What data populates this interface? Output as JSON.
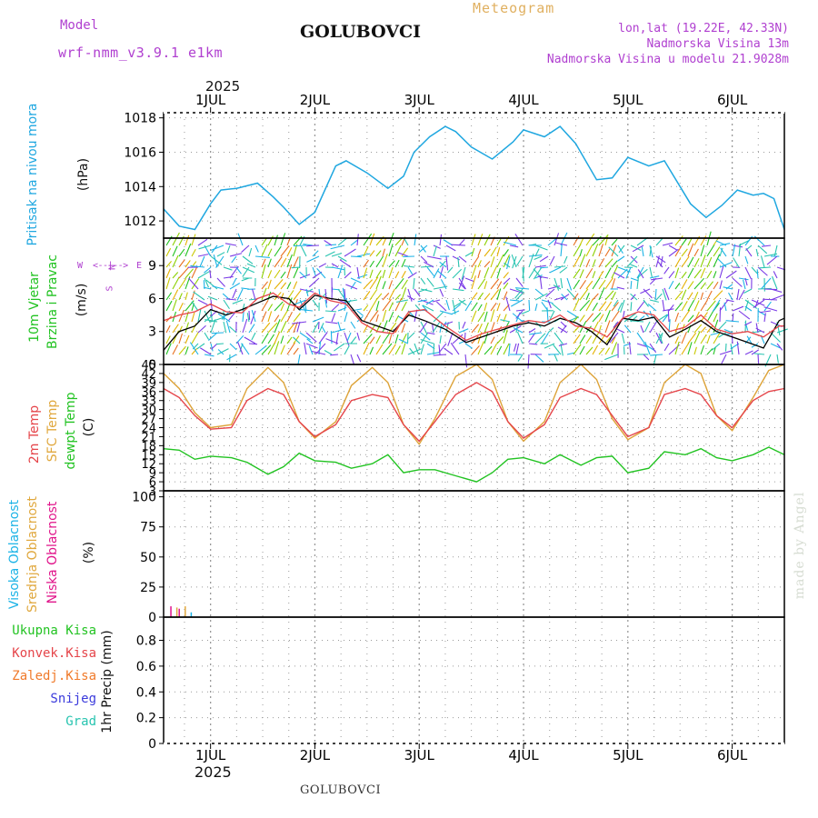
{
  "header": {
    "model_label": "Model",
    "model_name": "wrf-nmm_v3.9.1 e1km",
    "station": "GOLUBOVCI",
    "title": "Meteogram",
    "coords": "lon,lat (19.22E, 42.33N)",
    "elevation": "Nadmorska Visina 13m",
    "model_elevation": "Nadmorska Visina u modelu 21.9028m"
  },
  "footer": {
    "station": "GOLUBOVCI",
    "credit": "made by Angel"
  },
  "colors": {
    "pressure": "#1fa7e0",
    "wind_black": "#000000",
    "temp2m": "#e5454a",
    "sfc": "#dda338",
    "dew": "#22c322",
    "high_cloud": "#1cb3e6",
    "mid_cloud": "#e0a83e",
    "low_cloud": "#e0148a",
    "rain_total": "#22c322",
    "rain_conv": "#e5454a",
    "freezing": "#f07a2a",
    "snow": "#3b3bdc",
    "hail": "#28c4b0",
    "grid": "#9a9a9a"
  },
  "x_axis": {
    "year": "2025",
    "days": [
      "1JUL",
      "2JUL",
      "3JUL",
      "4JUL",
      "5JUL",
      "6JUL"
    ]
  },
  "panels": {
    "pressure": {
      "label1": "Pritisak na nivou mora",
      "unit": "(hPa)"
    },
    "wind": {
      "label1": "10m Vjetar",
      "label2": "Brzina i Pravac",
      "unit": "(m/s)",
      "compass_n": "N",
      "compass_w": "W",
      "compass_e": "E",
      "compass_s": "S",
      "compass_arrows": "<--|-->"
    },
    "temp": {
      "label1": "2m Temp",
      "label2": "SFC Temp",
      "label3": "dewpt Temp",
      "unit": "(C)"
    },
    "cloud": {
      "label1": "Visoka Oblacnost",
      "label2": "Srednja Oblacnost",
      "label3": "Niska Oblacnost",
      "unit": "(%)"
    },
    "precip": {
      "unit": "1hr Precip (mm)",
      "legend": [
        "Ukupna Kisa",
        "Konvek.Kisa",
        "Zaledj.Kisa",
        "Snijeg",
        "Grad"
      ]
    }
  },
  "chart_data": [
    {
      "type": "line",
      "title": "Pritisak na nivou mora",
      "ylabel": "(hPa)",
      "x_days": [
        0.55,
        0.7,
        0.85,
        1.0,
        1.1,
        1.25,
        1.45,
        1.6,
        1.7,
        1.85,
        2.0,
        2.2,
        2.3,
        2.5,
        2.7,
        2.85,
        2.95,
        3.1,
        3.25,
        3.35,
        3.5,
        3.7,
        3.9,
        4.0,
        4.2,
        4.35,
        4.5,
        4.7,
        4.85,
        5.0,
        5.2,
        5.35,
        5.6,
        5.75,
        5.9,
        6.05,
        6.2,
        6.3,
        6.4,
        6.5
      ],
      "values": [
        1012.7,
        1011.7,
        1011.5,
        1013.0,
        1013.8,
        1013.9,
        1014.2,
        1013.4,
        1012.8,
        1011.8,
        1012.5,
        1015.2,
        1015.5,
        1014.8,
        1013.9,
        1014.6,
        1016.0,
        1016.9,
        1017.5,
        1017.2,
        1016.3,
        1015.6,
        1016.6,
        1017.3,
        1016.9,
        1017.5,
        1016.5,
        1014.4,
        1014.5,
        1015.7,
        1015.2,
        1015.5,
        1013.0,
        1012.2,
        1012.9,
        1013.8,
        1013.5,
        1013.6,
        1013.3,
        1011.5
      ],
      "ylim": [
        1011,
        1018.3
      ],
      "yticks": [
        1012,
        1014,
        1016,
        1018
      ]
    },
    {
      "type": "line",
      "title": "10m Vjetar Brzina i Pravac",
      "ylabel": "(m/s)",
      "x_days": [
        0.55,
        0.7,
        0.85,
        1.0,
        1.15,
        1.3,
        1.45,
        1.6,
        1.75,
        1.85,
        2.0,
        2.15,
        2.3,
        2.45,
        2.6,
        2.75,
        2.9,
        3.05,
        3.25,
        3.45,
        3.6,
        3.75,
        3.9,
        4.05,
        4.2,
        4.35,
        4.5,
        4.65,
        4.8,
        4.95,
        5.1,
        5.25,
        5.4,
        5.55,
        5.7,
        5.85,
        6.0,
        6.15,
        6.3,
        6.45,
        6.5
      ],
      "series": [
        {
          "values": [
            1.3,
            3.0,
            3.5,
            5.0,
            4.5,
            5.0,
            5.6,
            6.2,
            6.0,
            5.0,
            6.3,
            6.0,
            5.8,
            4.0,
            3.5,
            3.0,
            4.5,
            4.0,
            3.2,
            2.0,
            2.5,
            3.0,
            3.5,
            3.8,
            3.5,
            4.2,
            3.8,
            3.0,
            1.8,
            4.2,
            4.0,
            4.3,
            2.5,
            3.2,
            4.0,
            3.0,
            2.5,
            2.0,
            1.5,
            4.0,
            4.2
          ]
        },
        {
          "values": [
            4.0,
            4.5,
            4.8,
            5.5,
            4.8,
            4.7,
            6.0,
            6.5,
            5.5,
            5.2,
            6.5,
            5.8,
            5.5,
            3.8,
            3.0,
            2.8,
            4.8,
            5.0,
            3.5,
            2.2,
            2.8,
            3.2,
            3.6,
            4.0,
            3.8,
            4.5,
            3.5,
            3.3,
            2.5,
            4.2,
            4.8,
            4.5,
            3.0,
            3.4,
            4.5,
            3.2,
            2.8,
            3.0,
            2.5,
            3.5,
            3.5
          ]
        }
      ],
      "ylim": [
        0,
        11.5
      ],
      "yticks": [
        0,
        3,
        6,
        9
      ]
    },
    {
      "type": "line",
      "title": "Temperature",
      "ylabel": "(C)",
      "x_days": [
        0.55,
        0.7,
        0.85,
        1.0,
        1.2,
        1.35,
        1.55,
        1.7,
        1.85,
        2.0,
        2.2,
        2.35,
        2.55,
        2.7,
        2.85,
        3.0,
        3.15,
        3.35,
        3.55,
        3.7,
        3.85,
        4.0,
        4.2,
        4.35,
        4.55,
        4.7,
        4.85,
        5.0,
        5.2,
        5.35,
        5.55,
        5.7,
        5.85,
        6.0,
        6.2,
        6.35,
        6.5
      ],
      "series": [
        {
          "values": [
            37.0,
            34.0,
            28.0,
            23.5,
            24.0,
            33.0,
            37.0,
            35.0,
            26.0,
            21.0,
            25.0,
            33.0,
            35.0,
            34.0,
            25.0,
            19.5,
            26.0,
            35.0,
            39.0,
            36.0,
            26.0,
            20.5,
            25.0,
            34.0,
            37.0,
            35.0,
            28.0,
            21.0,
            24.0,
            35.0,
            37.0,
            35.0,
            28.0,
            24.0,
            33.0,
            36.0,
            37.0
          ]
        },
        {
          "values": [
            42.0,
            37.0,
            29.0,
            24.0,
            25.0,
            37.0,
            44.0,
            39.0,
            26.0,
            20.5,
            26.0,
            38.0,
            44.0,
            39.0,
            25.0,
            18.5,
            27.0,
            41.0,
            45.0,
            40.0,
            26.0,
            19.5,
            26.0,
            39.0,
            45.0,
            40.0,
            27.0,
            20.0,
            24.0,
            39.0,
            45.0,
            42.0,
            28.0,
            23.0,
            34.0,
            43.0,
            45.0
          ]
        },
        {
          "values": [
            17.0,
            16.5,
            13.5,
            14.5,
            14.0,
            12.5,
            8.5,
            11.0,
            15.5,
            13.0,
            12.5,
            10.5,
            12.0,
            15.0,
            9.0,
            10.0,
            10.0,
            8.0,
            6.0,
            9.0,
            13.5,
            14.0,
            12.0,
            15.0,
            11.5,
            14.0,
            14.5,
            9.0,
            10.5,
            16.0,
            15.0,
            17.0,
            14.0,
            13.0,
            15.0,
            17.5,
            15.0
          ]
        }
      ],
      "ylim": [
        3,
        45
      ],
      "yticks": [
        3,
        6,
        9,
        12,
        15,
        18,
        21,
        24,
        27,
        30,
        33,
        36,
        39,
        42,
        45
      ]
    },
    {
      "type": "bar",
      "title": "Oblacnost",
      "ylabel": "(%)",
      "x_days": [
        0.62,
        0.66,
        0.7,
        0.74,
        0.78
      ],
      "series": [
        {
          "values": [
            9,
            0,
            7,
            0,
            0
          ]
        },
        {
          "values": [
            0,
            8,
            0,
            9,
            0
          ]
        },
        {
          "values": [
            0,
            0,
            0,
            0,
            4
          ]
        }
      ],
      "ylim": [
        0,
        105
      ],
      "yticks": [
        0,
        25,
        50,
        75,
        100
      ]
    },
    {
      "type": "bar",
      "title": "1hr Precip",
      "ylabel": "(mm)",
      "values": [],
      "ylim": [
        0,
        0.98
      ],
      "yticks": [
        0,
        0.2,
        0.4,
        0.6,
        0.8
      ]
    }
  ]
}
